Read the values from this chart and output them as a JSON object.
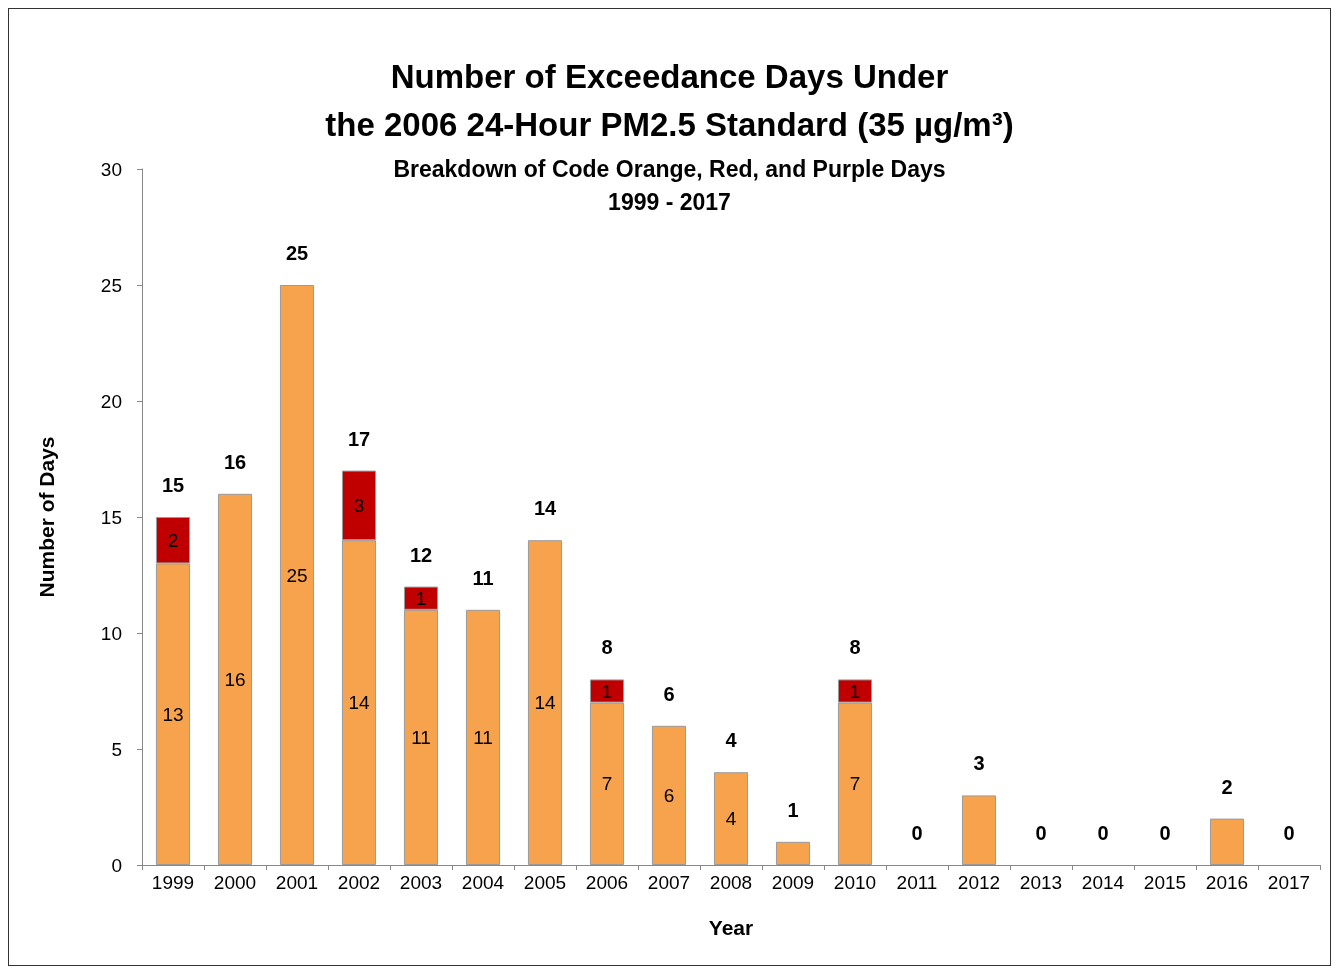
{
  "chart_data": {
    "type": "bar",
    "title": "Number of Exceedance Days Under\nthe 2006 24-Hour PM2.5 Standard (35 µg/m³)",
    "subtitle": "Breakdown of Code Orange, Red, and Purple Days\n1999 - 2017",
    "xlabel": "Year",
    "ylabel": "Number of Days",
    "categories": [
      "1999",
      "2000",
      "2001",
      "2002",
      "2003",
      "2004",
      "2005",
      "2006",
      "2007",
      "2008",
      "2009",
      "2010",
      "2011",
      "2012",
      "2013",
      "2014",
      "2015",
      "2016",
      "2017"
    ],
    "stacked": true,
    "series": [
      {
        "color": "#f7a24c",
        "values": [
          13,
          16,
          25,
          14,
          11,
          11,
          14,
          7,
          6,
          4,
          1,
          7,
          0,
          3,
          0,
          0,
          0,
          2,
          0
        ],
        "value_labels": [
          "13",
          "16",
          "25",
          "14",
          "11",
          "11",
          "14",
          "7",
          "6",
          "4",
          null,
          "7",
          null,
          null,
          null,
          null,
          null,
          null,
          null
        ]
      },
      {
        "color": "#c00000",
        "values": [
          2,
          0,
          0,
          3,
          1,
          0,
          0,
          1,
          0,
          0,
          0,
          1,
          0,
          0,
          0,
          0,
          0,
          0,
          0
        ],
        "value_labels": [
          "2",
          null,
          null,
          "3",
          "1",
          null,
          null,
          "1",
          null,
          null,
          null,
          "1",
          null,
          null,
          null,
          null,
          null,
          null,
          null
        ]
      }
    ],
    "totals": [
      "15",
      "16",
      "25",
      "17",
      "12",
      "11",
      "14",
      "8",
      "6",
      "4",
      "1",
      "8",
      "0",
      "3",
      "0",
      "0",
      "0",
      "2",
      "0"
    ],
    "ylim": [
      0,
      30
    ],
    "yticks": [
      0,
      5,
      10,
      15,
      20,
      25,
      30
    ],
    "grid": false
  }
}
